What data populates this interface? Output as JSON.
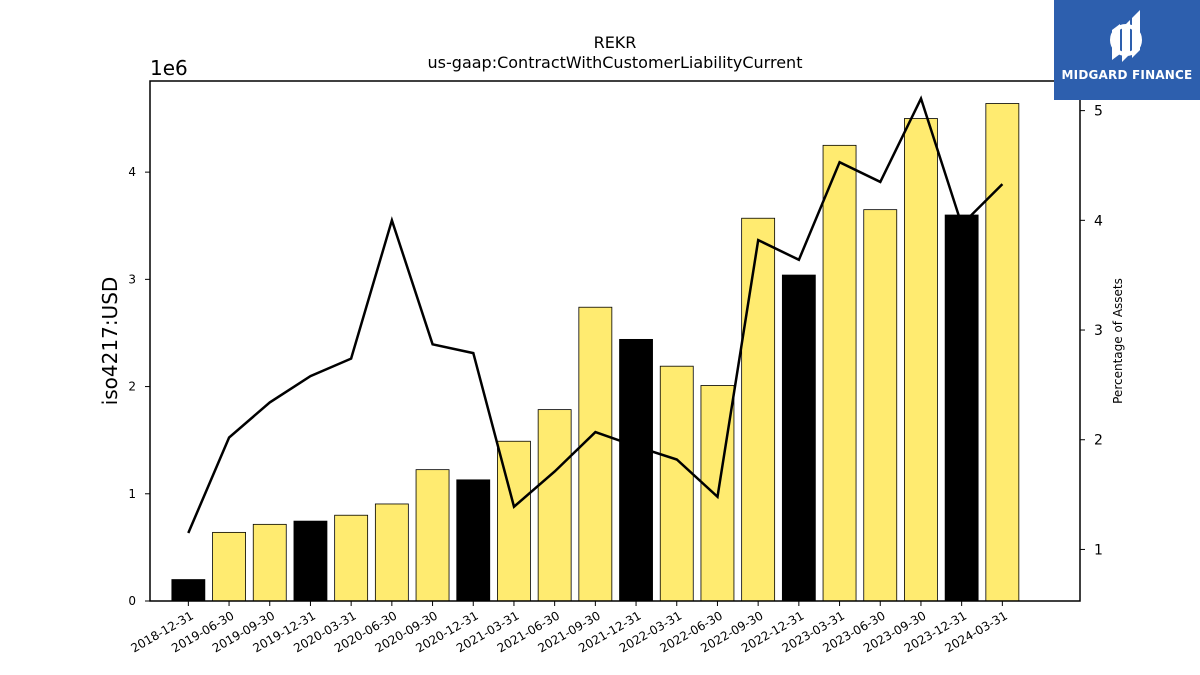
{
  "chart_data": {
    "type": "bar",
    "title": "REKR",
    "subtitle": "us-gaap:ContractWithCustomerLiabilityCurrent",
    "ylabel": "iso4217:USD",
    "y_offset_label": "1e6",
    "y2label": "Percentage of Assets",
    "ylim": [
      0,
      4850000
    ],
    "y2lim": [
      0.53,
      5.27
    ],
    "yticks": [
      "0",
      "1",
      "2",
      "3",
      "4"
    ],
    "y2ticks": [
      "1",
      "2",
      "3",
      "4",
      "5"
    ],
    "categories": [
      "2018-12-31",
      "2019-06-30",
      "2019-09-30",
      "2019-12-31",
      "2020-03-31",
      "2020-06-30",
      "2020-09-30",
      "2020-12-31",
      "2021-03-31",
      "2021-06-30",
      "2021-09-30",
      "2021-12-31",
      "2022-03-31",
      "2022-06-30",
      "2022-09-30",
      "2022-12-31",
      "2023-03-31",
      "2023-06-30",
      "2023-09-30",
      "2023-12-31",
      "2024-03-31"
    ],
    "series": [
      {
        "type": "bar",
        "values": [
          200000,
          640000,
          715000,
          745000,
          800000,
          905000,
          1225000,
          1130000,
          1490000,
          1785000,
          2740000,
          2440000,
          2190000,
          2010000,
          3570000,
          3040000,
          4250000,
          3650000,
          4500000,
          3600000,
          4640000
        ],
        "highlight": [
          true,
          false,
          false,
          true,
          false,
          false,
          false,
          true,
          false,
          false,
          false,
          true,
          false,
          false,
          false,
          true,
          false,
          false,
          false,
          true,
          false
        ]
      },
      {
        "type": "line",
        "axis": "right",
        "values": [
          1.15,
          2.02,
          2.34,
          2.58,
          2.74,
          4.0,
          2.87,
          2.79,
          1.39,
          1.71,
          2.07,
          1.94,
          1.82,
          1.48,
          3.82,
          3.64,
          4.53,
          4.35,
          5.11,
          3.96,
          4.33
        ]
      }
    ],
    "colors": {
      "bar": "#ffeb70",
      "bar_highlight": "#000000",
      "line": "#000000"
    }
  },
  "logo": {
    "text": "MIDGARD FINANCE",
    "bg": "#2d5fae"
  }
}
